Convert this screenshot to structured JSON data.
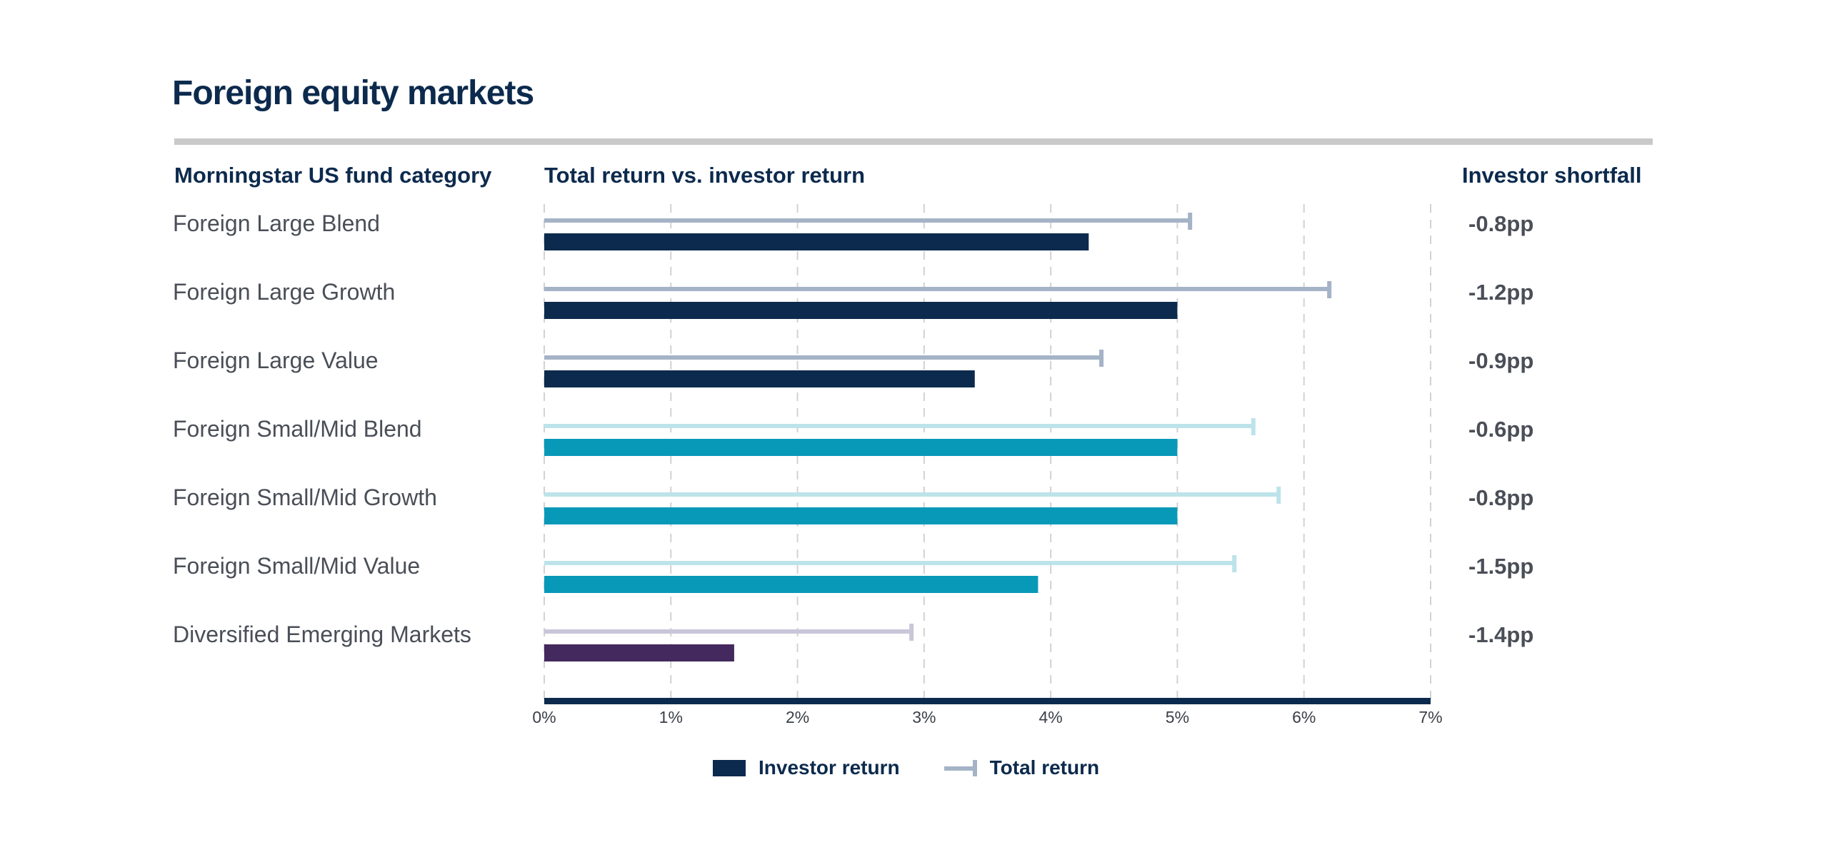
{
  "title": "Foreign equity markets",
  "column_headers": {
    "category": "Morningstar US fund category",
    "chart": "Total return vs. investor return",
    "shortfall": "Investor shortfall"
  },
  "colors": {
    "navy": "#0c2a4d",
    "navy_light": "#a5b3c7",
    "teal": "#0899b8",
    "teal_light": "#bde3ea",
    "purple": "#43295d",
    "purple_light": "#c9c6d9",
    "grid": "#d2d2d2",
    "rule": "#c9c9c9"
  },
  "legend": [
    {
      "label": "Investor return",
      "icon": "bar-swatch"
    },
    {
      "label": "Total return",
      "icon": "capped-line-swatch"
    }
  ],
  "chart_data": {
    "type": "bar",
    "orientation": "horizontal",
    "categories": [
      "Foreign Large Blend",
      "Foreign Large Growth",
      "Foreign Large Value",
      "Foreign Small/Mid Blend",
      "Foreign Small/Mid Growth",
      "Foreign Small/Mid Value",
      "Diversified Emerging Markets"
    ],
    "series": [
      {
        "name": "Investor return",
        "values": [
          4.3,
          5.0,
          3.4,
          5.0,
          5.0,
          3.9,
          1.5
        ]
      },
      {
        "name": "Total return",
        "values": [
          5.1,
          6.2,
          4.4,
          5.6,
          5.8,
          5.45,
          2.9
        ]
      }
    ],
    "bar_color_groups": [
      "navy",
      "navy",
      "navy",
      "teal",
      "teal",
      "teal",
      "purple"
    ],
    "shortfall_labels": [
      "-0.8pp",
      "-1.2pp",
      "-0.9pp",
      "-0.6pp",
      "-0.8pp",
      "-1.5pp",
      "-1.4pp"
    ],
    "x_ticks": [
      "0%",
      "1%",
      "2%",
      "3%",
      "4%",
      "5%",
      "6%",
      "7%"
    ],
    "xlim": [
      0,
      7
    ],
    "grid": "vertical-dashed",
    "legend_position": "bottom-center"
  }
}
